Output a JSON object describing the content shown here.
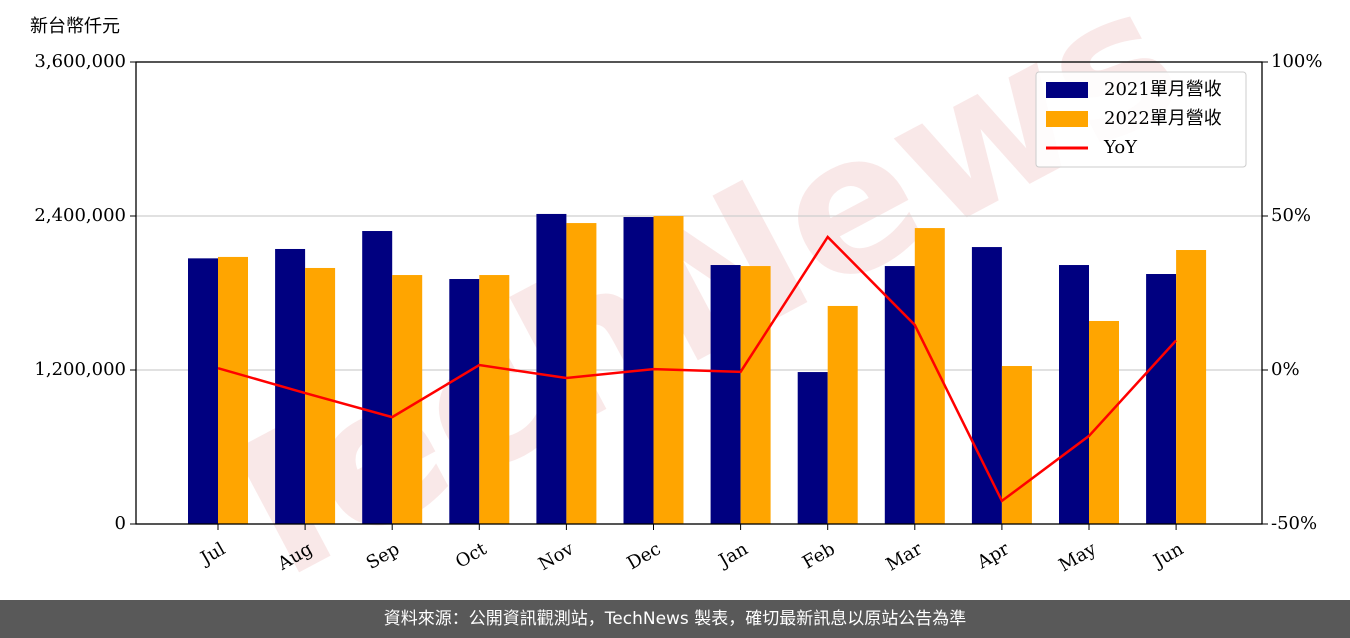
{
  "chart_data": {
    "type": "bar_line",
    "ylabel": "新台幣仟元",
    "watermark": "TechNews",
    "categories": [
      "Jul",
      "Aug",
      "Sep",
      "Oct",
      "Nov",
      "Dec",
      "Jan",
      "Feb",
      "Mar",
      "Apr",
      "May",
      "Jun"
    ],
    "series": [
      {
        "name": "2021單月營收",
        "color": "#000080",
        "kind": "bar",
        "values": [
          2070000,
          2143000,
          2283000,
          1909000,
          2416000,
          2392000,
          2018000,
          1184000,
          2010000,
          2158000,
          2018000,
          1948000
        ]
      },
      {
        "name": "2022單月營收",
        "color": "#ffa500",
        "kind": "bar",
        "values": [
          2081000,
          1995000,
          1940000,
          1940000,
          2345000,
          2400000,
          2010000,
          1699000,
          2306000,
          1231000,
          1582000,
          2135000
        ]
      },
      {
        "name": "YoY",
        "color": "#ff0000",
        "kind": "line",
        "axis": "y2",
        "values": [
          0.6,
          -7.5,
          -15.3,
          1.6,
          -2.6,
          0.3,
          -0.6,
          43.2,
          14.6,
          -42.5,
          -21.4,
          9.6
        ]
      }
    ],
    "ylim": [
      0,
      3600000
    ],
    "yticks": [
      0,
      {
        "value": 1200000,
        "label": "1,200,000"
      },
      {
        "value": 2400000,
        "label": "2,400,000"
      },
      {
        "value": 3600000,
        "label": "3,600,000"
      }
    ],
    "y2lim": [
      -50,
      100
    ],
    "y2ticks": [
      {
        "value": -50,
        "label": "-50%"
      },
      {
        "value": 0,
        "label": "0%"
      },
      {
        "value": 50,
        "label": "50%"
      },
      {
        "value": 100,
        "label": "100%"
      }
    ],
    "grid": true,
    "legend": "upper right",
    "footer": "資料來源：公開資訊觀測站，TechNews 製表，確切最新訊息以原站公告為準"
  }
}
